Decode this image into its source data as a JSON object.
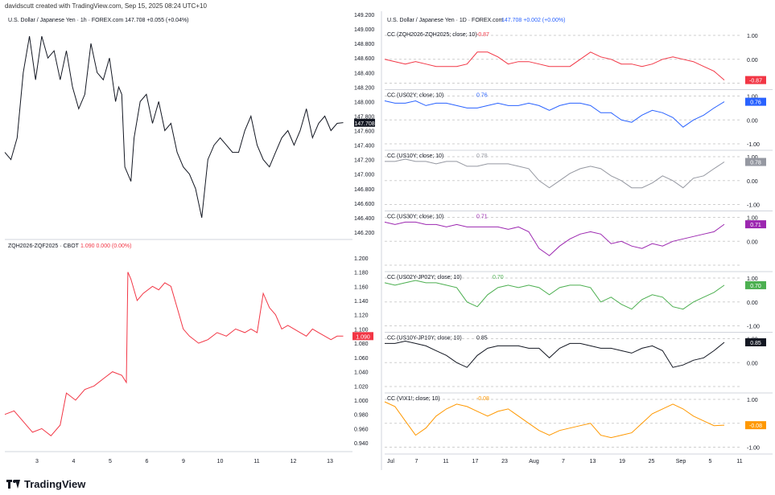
{
  "header": {
    "credit": "davidscutt created with TradingView.com, Sep 15, 2025 08:24 UTC+10"
  },
  "brand": {
    "name": "TradingView"
  },
  "colors": {
    "grid": "#e6e6e6",
    "axis": "#d1d4dc",
    "text": "#131722",
    "red": "#f23645",
    "blue": "#2962ff"
  },
  "chart_data": [
    {
      "type": "line",
      "title": "U.S. Dollar / Japanese Yen · 1h · FOREX.com",
      "last_value": "147.708",
      "change": "+0.055 (+0.04%)",
      "color": "#131722",
      "badge_label": "147.708",
      "y_ticks": [
        "149.200",
        "149.000",
        "148.800",
        "148.600",
        "148.400",
        "148.200",
        "148.000",
        "147.800",
        "147.600",
        "147.400",
        "147.200",
        "147.000",
        "146.800",
        "146.600",
        "146.400",
        "146.200"
      ],
      "ylim": [
        146.1,
        149.2
      ],
      "x_ticks": [
        "3",
        "4",
        "5",
        "6",
        "9",
        "10",
        "11",
        "12",
        "13"
      ],
      "x": [
        2.0,
        2.2,
        2.4,
        2.6,
        2.8,
        3.0,
        3.2,
        3.4,
        3.6,
        3.8,
        4.0,
        4.2,
        4.4,
        4.6,
        4.8,
        5.0,
        5.2,
        5.4,
        5.6,
        5.7,
        5.8,
        5.9,
        6.0,
        6.1,
        6.2,
        6.4,
        6.6,
        6.8,
        7.0,
        7.2,
        7.4,
        7.6,
        7.8,
        8.0,
        8.2,
        8.4,
        8.6,
        8.8,
        9.0,
        9.2,
        9.4,
        9.6,
        9.8,
        10.0,
        10.2,
        10.4,
        10.6,
        10.8,
        11.0,
        11.2,
        11.4,
        11.6,
        11.8,
        12.0,
        12.2,
        12.4,
        12.6,
        12.8,
        13.0
      ],
      "y": [
        147.3,
        147.2,
        147.5,
        148.4,
        148.9,
        148.3,
        148.9,
        148.6,
        148.7,
        148.3,
        148.7,
        148.2,
        147.9,
        148.1,
        148.8,
        148.4,
        148.3,
        148.6,
        148.0,
        148.2,
        148.1,
        147.1,
        147.0,
        146.9,
        147.5,
        148.0,
        148.1,
        147.7,
        148.0,
        147.6,
        147.7,
        147.3,
        147.1,
        147.0,
        146.8,
        146.4,
        147.2,
        147.4,
        147.5,
        147.4,
        147.3,
        147.3,
        147.6,
        147.8,
        147.4,
        147.2,
        147.1,
        147.3,
        147.5,
        147.6,
        147.4,
        147.6,
        147.9,
        147.5,
        147.7,
        147.8,
        147.6,
        147.7,
        147.71
      ]
    },
    {
      "type": "line",
      "title": "ZQH2026-ZQF2025 · CBOT",
      "last_value": "1.090",
      "change": "0.000 (0.00%)",
      "color": "#f23645",
      "badge_label": "1.090",
      "y_ticks": [
        "1.200",
        "1.180",
        "1.160",
        "1.140",
        "1.120",
        "1.100",
        "1.080",
        "1.060",
        "1.040",
        "1.020",
        "1.000",
        "0.980",
        "0.960",
        "0.940"
      ],
      "ylim": [
        0.93,
        1.21
      ],
      "x_ticks": [
        "3",
        "4",
        "5",
        "6",
        "9",
        "10",
        "11",
        "12",
        "13"
      ],
      "x": [
        2.0,
        2.3,
        2.6,
        2.9,
        3.2,
        3.5,
        3.8,
        4.0,
        4.3,
        4.6,
        4.9,
        5.2,
        5.5,
        5.8,
        5.95,
        6.0,
        6.1,
        6.3,
        6.5,
        6.8,
        7.0,
        7.2,
        7.4,
        7.6,
        7.8,
        8.0,
        8.3,
        8.6,
        8.9,
        9.2,
        9.5,
        9.8,
        10.0,
        10.2,
        10.4,
        10.6,
        10.8,
        11.0,
        11.2,
        11.4,
        11.6,
        11.8,
        12.0,
        12.2,
        12.4,
        12.6,
        12.8,
        13.0
      ],
      "y": [
        0.98,
        0.985,
        0.97,
        0.955,
        0.96,
        0.95,
        0.965,
        1.01,
        1.0,
        1.015,
        1.02,
        1.03,
        1.04,
        1.035,
        1.025,
        1.18,
        1.17,
        1.14,
        1.15,
        1.16,
        1.155,
        1.165,
        1.16,
        1.13,
        1.1,
        1.09,
        1.08,
        1.085,
        1.095,
        1.09,
        1.1,
        1.095,
        1.1,
        1.095,
        1.15,
        1.13,
        1.12,
        1.1,
        1.105,
        1.1,
        1.095,
        1.09,
        1.1,
        1.095,
        1.09,
        1.085,
        1.09,
        1.09
      ]
    },
    {
      "type": "line",
      "title": "U.S. Dollar / Japanese Yen · 1D · FOREX.com",
      "last_value": "147.708",
      "change": "+0.002 (+0.00%)",
      "x_ticks": [
        "Jul",
        "7",
        "11",
        "17",
        "23",
        "Aug",
        "7",
        "13",
        "19",
        "25",
        "Sep",
        "5",
        "11"
      ],
      "panes": [
        {
          "label": "CC (ZQH2026-ZQH2025; close; 10)",
          "value": "-0.87",
          "color": "#f23645",
          "ticks": [
            "1.00",
            "0.00"
          ],
          "y": [
            0.0,
            -0.1,
            -0.2,
            -0.1,
            -0.2,
            -0.3,
            -0.3,
            -0.3,
            -0.2,
            0.3,
            0.3,
            0.1,
            -0.2,
            -0.1,
            -0.1,
            -0.2,
            -0.3,
            -0.3,
            -0.3,
            0.0,
            0.3,
            0.1,
            0.0,
            -0.2,
            -0.2,
            -0.3,
            -0.2,
            0.0,
            0.1,
            0.0,
            -0.1,
            -0.3,
            -0.5,
            -0.87
          ]
        },
        {
          "label": "CC (US02Y; close; 10)",
          "value": "0.76",
          "color": "#2962ff",
          "ticks": [
            "1.00",
            "0.00",
            "-1.00"
          ],
          "y": [
            0.8,
            0.7,
            0.7,
            0.8,
            0.6,
            0.7,
            0.7,
            0.6,
            0.5,
            0.5,
            0.6,
            0.7,
            0.6,
            0.6,
            0.7,
            0.6,
            0.4,
            0.6,
            0.7,
            0.7,
            0.6,
            0.3,
            0.3,
            0.0,
            -0.1,
            0.2,
            0.4,
            0.3,
            0.1,
            -0.3,
            0.0,
            0.2,
            0.5,
            0.76
          ]
        },
        {
          "label": "CC (US10Y; close; 10)",
          "value": "0.78",
          "color": "#9598a1",
          "ticks": [
            "1.00",
            "0.00",
            "-1.00"
          ],
          "y": [
            0.8,
            0.8,
            0.9,
            0.8,
            0.8,
            0.7,
            0.8,
            0.8,
            0.6,
            0.6,
            0.7,
            0.7,
            0.7,
            0.6,
            0.5,
            0.0,
            -0.3,
            0.0,
            0.3,
            0.5,
            0.6,
            0.5,
            0.2,
            0.0,
            -0.3,
            -0.3,
            -0.1,
            0.2,
            0.0,
            -0.3,
            0.1,
            0.2,
            0.5,
            0.78
          ]
        },
        {
          "label": "CC (US30Y; close; 10)",
          "value": "0.71",
          "color": "#9c27b0",
          "ticks": [
            "1.00",
            "0.00"
          ],
          "y": [
            0.8,
            0.7,
            0.8,
            0.8,
            0.7,
            0.7,
            0.6,
            0.7,
            0.6,
            0.6,
            0.6,
            0.6,
            0.5,
            0.6,
            0.4,
            -0.3,
            -0.6,
            -0.2,
            0.1,
            0.3,
            0.4,
            0.3,
            -0.1,
            0.0,
            -0.2,
            -0.3,
            -0.1,
            -0.2,
            0.0,
            0.1,
            0.2,
            0.3,
            0.4,
            0.71
          ]
        },
        {
          "label": "CC (US02Y-JP02Y; close; 10)",
          "value": "0.70",
          "color": "#4caf50",
          "ticks": [
            "1.00",
            "0.00",
            "-1.00"
          ],
          "y": [
            0.8,
            0.7,
            0.8,
            0.9,
            0.8,
            0.8,
            0.7,
            0.6,
            0.0,
            -0.2,
            0.3,
            0.6,
            0.7,
            0.6,
            0.7,
            0.6,
            0.3,
            0.6,
            0.7,
            0.7,
            0.6,
            0.0,
            0.2,
            -0.1,
            -0.3,
            0.1,
            0.3,
            0.2,
            -0.2,
            -0.3,
            0.0,
            0.2,
            0.4,
            0.7
          ]
        },
        {
          "label": "CC (US10Y-JP10Y; close; 10)",
          "value": "0.85",
          "color": "#131722",
          "ticks": [
            "1.00",
            "0.00"
          ],
          "y": [
            0.8,
            0.8,
            0.9,
            0.8,
            0.7,
            0.5,
            0.3,
            0.0,
            -0.2,
            0.3,
            0.6,
            0.7,
            0.7,
            0.7,
            0.6,
            0.6,
            0.2,
            0.6,
            0.8,
            0.8,
            0.7,
            0.6,
            0.6,
            0.5,
            0.4,
            0.6,
            0.7,
            0.5,
            -0.2,
            -0.1,
            0.1,
            0.2,
            0.5,
            0.85
          ]
        },
        {
          "label": "CC (VIX1!; close; 10)",
          "value": "-0.08",
          "color": "#ff9800",
          "ticks": [
            "1.00",
            "0.00",
            "-1.00"
          ],
          "y": [
            0.9,
            0.7,
            0.1,
            -0.5,
            -0.2,
            0.3,
            0.6,
            0.8,
            0.7,
            0.5,
            0.3,
            0.5,
            0.6,
            0.3,
            0.0,
            -0.3,
            -0.5,
            -0.3,
            -0.2,
            -0.1,
            0.0,
            -0.5,
            -0.6,
            -0.5,
            -0.4,
            0.0,
            0.4,
            0.6,
            0.8,
            0.6,
            0.3,
            0.1,
            -0.1,
            -0.08
          ]
        }
      ]
    }
  ]
}
